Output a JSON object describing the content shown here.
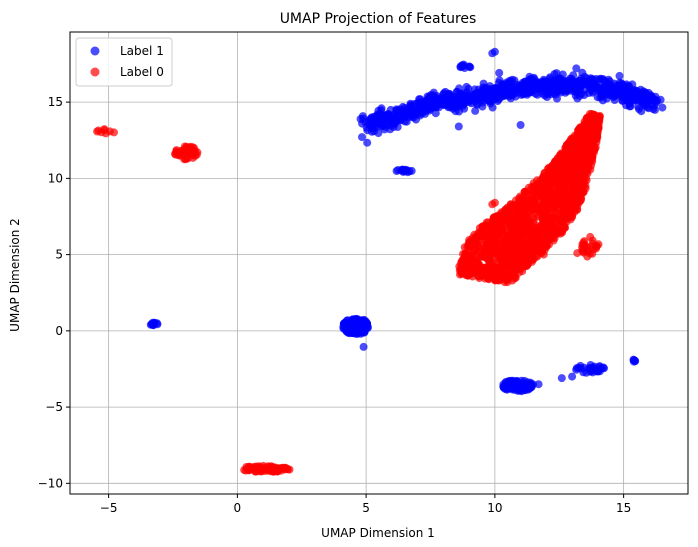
{
  "chart_data": {
    "type": "scatter",
    "title": "UMAP Projection of Features",
    "xlabel": "UMAP Dimension 1",
    "ylabel": "UMAP Dimension 2",
    "xlim": [
      -6.5,
      17.5
    ],
    "ylim": [
      -10.7,
      19.6
    ],
    "xticks": [
      -5,
      0,
      5,
      10,
      15
    ],
    "yticks": [
      -10,
      -5,
      0,
      5,
      10,
      15
    ],
    "grid": true,
    "legend_position": "top-left",
    "series": [
      {
        "name": "Label 1",
        "color": "#0000ff",
        "clusters": [
          {
            "shape": "arc",
            "points": [
              [
                5.0,
                13.5
              ],
              [
                6.0,
                14.0
              ],
              [
                7.0,
                14.6
              ],
              [
                8.0,
                15.0
              ],
              [
                9.0,
                15.3
              ],
              [
                10.0,
                15.6
              ],
              [
                11.0,
                15.9
              ],
              [
                12.0,
                16.1
              ],
              [
                13.0,
                16.2
              ],
              [
                14.0,
                16.0
              ],
              [
                15.0,
                15.6
              ],
              [
                16.3,
                15.0
              ]
            ],
            "spread": 0.55,
            "count": 900
          },
          {
            "shape": "blob",
            "center": [
              4.6,
              0.3
            ],
            "radius": [
              0.5,
              0.55
            ],
            "count": 140
          },
          {
            "shape": "blob",
            "center": [
              -3.25,
              0.45
            ],
            "radius": [
              0.15,
              0.12
            ],
            "count": 12
          },
          {
            "shape": "blob",
            "center": [
              6.5,
              10.5
            ],
            "radius": [
              0.4,
              0.1
            ],
            "count": 14
          },
          {
            "shape": "blob",
            "center": [
              10.9,
              -3.6
            ],
            "radius": [
              0.6,
              0.4
            ],
            "count": 90
          },
          {
            "shape": "blob",
            "center": [
              13.7,
              -2.5
            ],
            "radius": [
              0.55,
              0.3
            ],
            "count": 30
          },
          {
            "shape": "blob",
            "center": [
              15.4,
              -1.95
            ],
            "radius": [
              0.1,
              0.08
            ],
            "count": 5
          },
          {
            "shape": "blob",
            "center": [
              8.8,
              17.3
            ],
            "radius": [
              0.3,
              0.2
            ],
            "count": 10
          },
          {
            "shape": "points",
            "points": [
              [
                10.0,
                18.3
              ],
              [
                9.9,
                18.2
              ],
              [
                4.9,
                -1.05
              ],
              [
                8.6,
                13.4
              ],
              [
                11.0,
                13.5
              ],
              [
                12.4,
                16.3
              ],
              [
                13.0,
                -3.0
              ],
              [
                12.6,
                -3.1
              ],
              [
                11.7,
                -3.5
              ]
            ]
          }
        ]
      },
      {
        "name": "Label 0",
        "color": "#ff0000",
        "clusters": [
          {
            "shape": "band",
            "points": [
              [
                9.6,
                3.4
              ],
              [
                10.0,
                4.8
              ],
              [
                10.6,
                5.9
              ],
              [
                11.3,
                6.9
              ],
              [
                12.0,
                8.2
              ],
              [
                12.6,
                9.6
              ],
              [
                13.1,
                11.2
              ],
              [
                13.5,
                12.6
              ],
              [
                13.9,
                14.2
              ]
            ],
            "widths": [
              0.75,
              1.0,
              1.05,
              1.0,
              0.9,
              0.7,
              0.5,
              0.35,
              0.15
            ],
            "count": 1800
          },
          {
            "shape": "blob",
            "center": [
              13.7,
              5.5
            ],
            "radius": [
              0.35,
              0.7
            ],
            "count": 25
          },
          {
            "shape": "blob",
            "center": [
              -2.0,
              11.7
            ],
            "radius": [
              0.45,
              0.45
            ],
            "count": 40
          },
          {
            "shape": "blob",
            "center": [
              -5.1,
              13.05
            ],
            "radius": [
              0.35,
              0.2
            ],
            "count": 8
          },
          {
            "shape": "blob",
            "center": [
              1.1,
              -9.05
            ],
            "radius": [
              1.0,
              0.2
            ],
            "count": 70
          },
          {
            "shape": "points",
            "points": [
              [
                10.0,
                8.4
              ],
              [
                9.9,
                8.3
              ],
              [
                12.2,
                6.2
              ],
              [
                12.4,
                6.4
              ],
              [
                11.9,
                5.0
              ],
              [
                13.2,
                5.1
              ],
              [
                11.4,
                4.8
              ]
            ]
          }
        ]
      }
    ]
  }
}
